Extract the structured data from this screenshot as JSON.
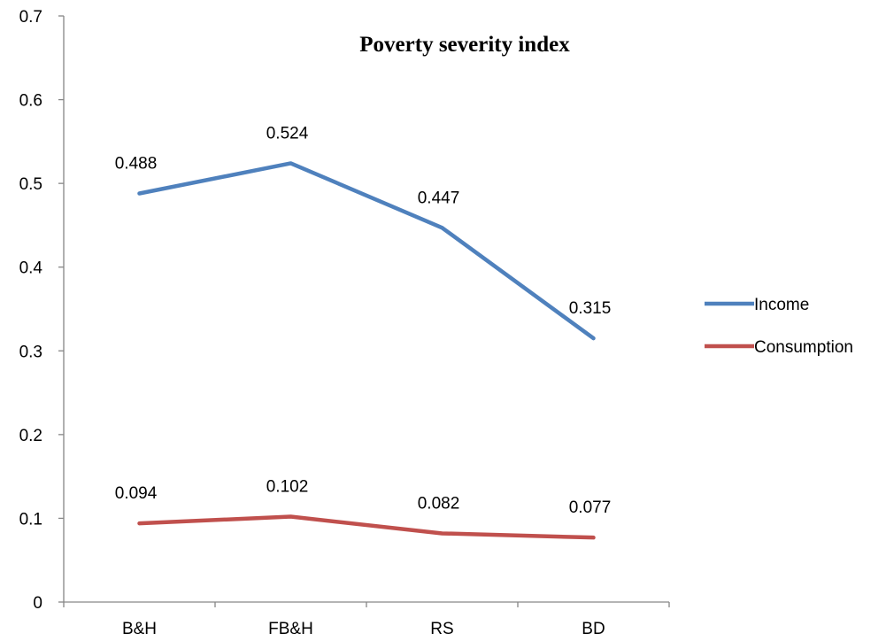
{
  "chart_data": {
    "type": "line",
    "title": "Poverty severity index",
    "xlabel": "",
    "ylabel": "",
    "categories": [
      "B&H",
      "FB&H",
      "RS",
      "BD"
    ],
    "ylim": [
      0,
      0.7
    ],
    "yticks": [
      "0",
      "0.1",
      "0.2",
      "0.3",
      "0.4",
      "0.5",
      "0.6",
      "0.7"
    ],
    "grid": false,
    "legend_position": "right",
    "series": [
      {
        "name": "Income",
        "color": "#4F81BD",
        "values": [
          0.488,
          0.524,
          0.447,
          0.315
        ],
        "labels": [
          "0.488",
          "0.524",
          "0.447",
          "0.315"
        ]
      },
      {
        "name": "Consumption",
        "color": "#C0504D",
        "values": [
          0.094,
          0.102,
          0.082,
          0.077
        ],
        "labels": [
          "0.094",
          "0.102",
          "0.082",
          "0.077"
        ]
      }
    ]
  }
}
